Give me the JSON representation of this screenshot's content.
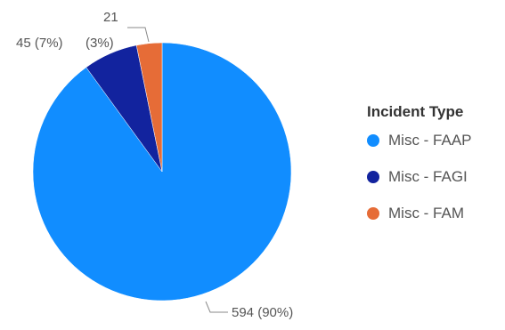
{
  "chart_data": {
    "type": "pie",
    "title": "",
    "start_angle_deg": 0,
    "direction": "clockwise",
    "slices": [
      {
        "label": "Misc - FAAP",
        "value": 594,
        "percent_label": "594 (90%)",
        "color": "#118DFF"
      },
      {
        "label": "Misc - FAGI",
        "value": 45,
        "percent_label": "45 (7%)",
        "color": "#12239E"
      },
      {
        "label": "Misc - FAM",
        "value": 21,
        "percent_label_value": "21",
        "percent_label_pct": "(3%)",
        "color": "#E66C37"
      }
    ],
    "legend": {
      "title": "Incident Type",
      "position": "right",
      "items": [
        {
          "label": "Misc - FAAP",
          "color": "#118DFF"
        },
        {
          "label": "Misc - FAGI",
          "color": "#12239E"
        },
        {
          "label": "Misc - FAM",
          "color": "#E66C37"
        }
      ]
    }
  }
}
